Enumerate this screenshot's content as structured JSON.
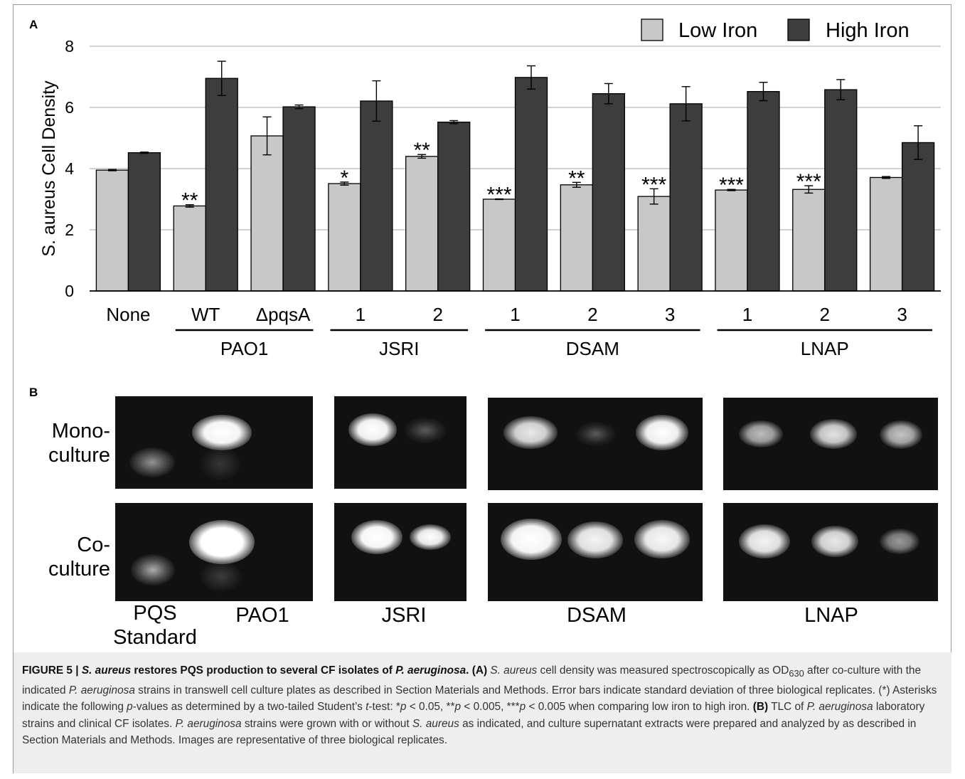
{
  "panel_a_label": "A",
  "panel_b_label": "B",
  "chart_data": {
    "type": "bar",
    "ylabel": "S. aureus Cell Density",
    "xlabel": "",
    "ylim": [
      0,
      8
    ],
    "yticks": [
      0,
      2,
      4,
      6,
      8
    ],
    "grid": true,
    "legend_position": "top-right",
    "categories": [
      "None",
      "WT",
      "ΔpqsA",
      "1",
      "2",
      "1",
      "2",
      "3",
      "1",
      "2",
      "3"
    ],
    "groups": [
      {
        "label": "PAO1",
        "first": 1,
        "last": 2
      },
      {
        "label": "JSRI",
        "first": 3,
        "last": 4
      },
      {
        "label": "DSAM",
        "first": 5,
        "last": 7
      },
      {
        "label": "LNAP",
        "first": 8,
        "last": 10
      }
    ],
    "series": [
      {
        "name": "Low Iron",
        "color": "#c8c8c8",
        "values": [
          3.95,
          2.78,
          5.07,
          3.51,
          4.4,
          3.0,
          3.47,
          3.09,
          3.3,
          3.32,
          3.71
        ],
        "errors": [
          0.02,
          0.04,
          0.62,
          0.05,
          0.06,
          0.01,
          0.08,
          0.25,
          0.02,
          0.12,
          0.03
        ]
      },
      {
        "name": "High Iron",
        "color": "#3d3d3d",
        "values": [
          4.52,
          6.95,
          6.02,
          6.21,
          5.52,
          6.98,
          6.45,
          6.12,
          6.52,
          6.58,
          4.85
        ],
        "errors": [
          0.02,
          0.56,
          0.06,
          0.66,
          0.05,
          0.38,
          0.33,
          0.56,
          0.3,
          0.33,
          0.55
        ]
      }
    ],
    "annotations": [
      "",
      "**",
      "",
      "*",
      "**",
      "***",
      "**",
      "***",
      "***",
      "***",
      ""
    ]
  },
  "tlc": {
    "row_labels": [
      {
        "line1": "Mono-",
        "line2": "culture"
      },
      {
        "line1": "Co-",
        "line2": "culture"
      }
    ],
    "col_labels": [
      {
        "line1": "PQS",
        "line2": "Standard"
      },
      {
        "line1": "PAO1",
        "line2": ""
      },
      {
        "line1": "JSRI",
        "line2": ""
      },
      {
        "line1": "DSAM",
        "line2": ""
      },
      {
        "line1": "LNAP",
        "line2": ""
      }
    ]
  },
  "caption": {
    "figure_no": "FIGURE 5 | ",
    "title_a": "S. aureus",
    "title_b": " restores PQS production to several CF isolates of ",
    "title_c": "P. aeruginosa",
    "title_d": ".",
    "p1": " (A) ",
    "p2": "S. aureus",
    "p3": " cell density was measured spectroscopically as OD",
    "p3_sub": "630",
    "p4": " after co-culture with the indicated ",
    "p5": "P. aeruginosa",
    "p6": " strains in transwell cell culture plates as described in Section Materials and Methods. Error bars indicate standard deviation of three biological replicates. (*) Asterisks indicate the following ",
    "p7": "p",
    "p8": "-values as determined by a two-tailed Student’s ",
    "p9": "t",
    "p10": "-test: *",
    "p11": "p",
    "p12": " < 0.05, **",
    "p13": "p",
    "p14": " < 0.005, ***",
    "p15": "p",
    "p16": " < 0.005 when comparing low iron to high iron. ",
    "p17": "(B)",
    "p18": " TLC of ",
    "p19": "P. aeruginosa",
    "p20": " laboratory strains and clinical CF isolates. ",
    "p21": "P. aeruginosa",
    "p22": " strains were grown with or without ",
    "p23": "S. aureus",
    "p24": " as indicated, and culture supernatant extracts were prepared and analyzed by as described in Section Materials and Methods. Images are representative of three biological replicates."
  }
}
